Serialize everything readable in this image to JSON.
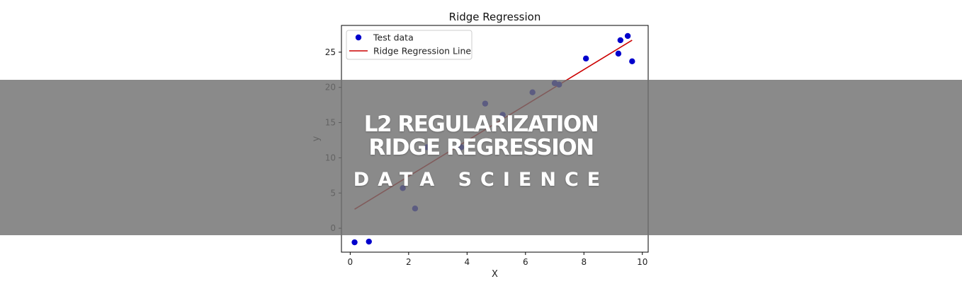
{
  "chart_data": {
    "type": "scatter",
    "title": "Ridge Regression",
    "xlabel": "X",
    "ylabel": "y",
    "xlim": [
      -0.3,
      10.2
    ],
    "ylim": [
      -3.4,
      28.8
    ],
    "xticks": [
      0,
      2,
      4,
      6,
      8,
      10
    ],
    "yticks": [
      0,
      5,
      10,
      15,
      20,
      25
    ],
    "grid": false,
    "legend_position": "top-left",
    "series": [
      {
        "name": "Test data",
        "kind": "scatter",
        "color": "#0000cc",
        "x": [
          0.15,
          0.64,
          1.8,
          2.22,
          2.62,
          3.8,
          4.62,
          5.22,
          6.24,
          7.0,
          7.15,
          8.07,
          9.18,
          9.25,
          9.5,
          9.65
        ],
        "y": [
          -2.0,
          -1.9,
          5.7,
          2.8,
          11.5,
          11.5,
          17.7,
          16.1,
          19.3,
          20.6,
          20.4,
          24.1,
          24.8,
          26.7,
          27.3,
          23.7
        ]
      },
      {
        "name": "Ridge Regression Line",
        "kind": "line",
        "color": "#cc0000",
        "x": [
          0.15,
          9.65
        ],
        "y": [
          2.7,
          26.7
        ]
      }
    ]
  },
  "banner": {
    "line1": "L2 REGULARIZATION",
    "line2": "RIDGE REGRESSION",
    "subtitle": "DATA SCIENCE"
  },
  "colors": {
    "overlay": "#707070",
    "banner_text": "#ffffff",
    "points": "#0000cc",
    "line": "#cc0000"
  }
}
